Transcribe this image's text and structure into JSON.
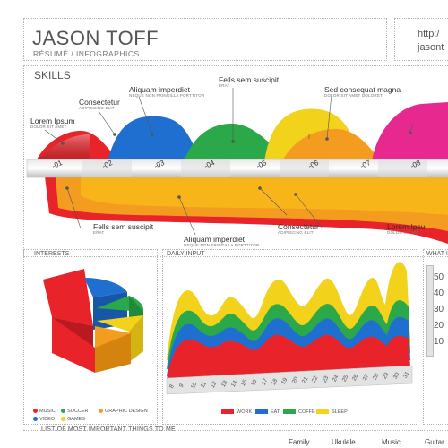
{
  "header": {
    "name": "JASON TOFF",
    "subtitle": "RÉSUMÉ / INFOGRAPHICS",
    "url_line1": "http:/",
    "url_line2": "jasont"
  },
  "skills": {
    "title": "SKILLS",
    "ticks": [
      "-01",
      "-02",
      "-03",
      "-04",
      "-05",
      "-06",
      "-07",
      "-08"
    ],
    "top_callouts": [
      {
        "title": "Lorem Ipsum",
        "sub": "DOLOR SIT AMET"
      },
      {
        "title": "Consectetur",
        "sub": "ADIPISCING ELIT"
      },
      {
        "title": "Aliquam imperdiet",
        "sub": "NEQUE NON FRINGILLA PORTTITOR"
      },
      {
        "title": "Fells sem suscipit",
        "sub": "ERAT"
      },
      {
        "title": "Sed consequat magna",
        "sub": "DOLOR SIT AMET DOLORET"
      }
    ],
    "bottom_callouts": [
      {
        "title": "Fells sem suscipit",
        "sub": "ERAT"
      },
      {
        "title": "Aliquam imperdiet",
        "sub": "NEQUE NON FRINGILLA PORTTITOR"
      },
      {
        "title": "Consectetur",
        "sub": "ADIPISCING ELIT"
      },
      {
        "title": "Lorem Ipsu",
        "sub": "DOLOR SIT AM"
      }
    ]
  },
  "interests": {
    "title": "INTERESTS",
    "legend": [
      {
        "label": "MUSIC",
        "color": "#e8232a"
      },
      {
        "label": "SOCCER",
        "color": "#2ba84a"
      },
      {
        "label": "GRAPHIC DESIGN",
        "color": "#f39c1f"
      },
      {
        "label": "VIDEO",
        "color": "#1f6fd1"
      },
      {
        "label": "GAMES",
        "color": "#f2d21b"
      }
    ],
    "footer": "LIST OF MOST IMPORTANT THINGS TO ME"
  },
  "daily": {
    "title": "DAILY INPUT",
    "days": [
      "8",
      "9",
      "10",
      "11",
      "12",
      "13",
      "14",
      "15",
      "16",
      "17",
      "18",
      "19",
      "20",
      "21",
      "22",
      "23",
      "24",
      "25",
      "26",
      "27",
      "28",
      "29",
      "30",
      "31"
    ],
    "legend": [
      {
        "label": "WORK",
        "color": "#e8232a"
      },
      {
        "label": "EAT",
        "color": "#1f6fd1"
      },
      {
        "label": "COFFE",
        "color": "#2ba84a"
      },
      {
        "label": "SLEEP",
        "color": "#f2d21b"
      }
    ]
  },
  "what": {
    "title": "WHAT I",
    "ticks": [
      "50",
      "40",
      "30",
      "20",
      "10"
    ]
  },
  "bottom_list": [
    "Family",
    "Ukulele",
    "Music",
    "Guitar"
  ],
  "colors": {
    "red": "#e8232a",
    "blue": "#1f6fd1",
    "green": "#2ba84a",
    "orange": "#f39c1f",
    "yellow": "#f2d21b",
    "pink": "#e6288f"
  }
}
